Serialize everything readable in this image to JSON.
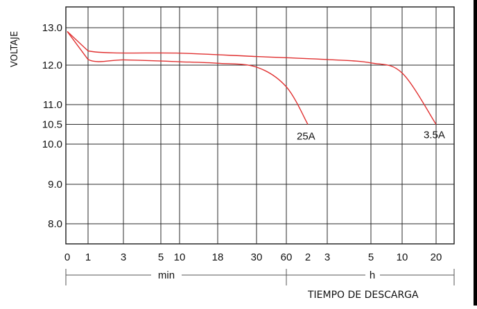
{
  "chart_data": {
    "type": "line",
    "ylabel": "VOLTAJE",
    "xlabel": "TIEMPO DE DESCARGA",
    "y_ticks": [
      "13.0",
      "12.0",
      "11.0",
      "10.5",
      "10.0",
      "9.0",
      "8.0"
    ],
    "x_ticks": [
      "0",
      "1",
      "3",
      "5",
      "10",
      "18",
      "30",
      "60",
      "2",
      "3",
      "5",
      "10",
      "20"
    ],
    "x_unit_labels": [
      "min",
      "h"
    ],
    "grid": true,
    "series": [
      {
        "name": "25A",
        "points": [
          {
            "x": "0",
            "y": 12.9
          },
          {
            "x": "1",
            "y": 12.15
          },
          {
            "x": "3",
            "y": 12.14
          },
          {
            "x": "5",
            "y": 12.11
          },
          {
            "x": "10",
            "y": 12.09
          },
          {
            "x": "18",
            "y": 12.05
          },
          {
            "x": "30",
            "y": 11.95
          },
          {
            "x": "60",
            "y": 11.45
          },
          {
            "x": "2",
            "y": 10.5
          }
        ]
      },
      {
        "name": "3.5A",
        "points": [
          {
            "x": "0",
            "y": 12.9
          },
          {
            "x": "1",
            "y": 12.38
          },
          {
            "x": "10",
            "y": 12.32
          },
          {
            "x": "30",
            "y": 12.23
          },
          {
            "x": "3",
            "y": 12.15
          },
          {
            "x": "5",
            "y": 12.06
          },
          {
            "x": "10",
            "y": 11.8
          },
          {
            "x": "20",
            "y": 10.5
          }
        ]
      }
    ]
  }
}
